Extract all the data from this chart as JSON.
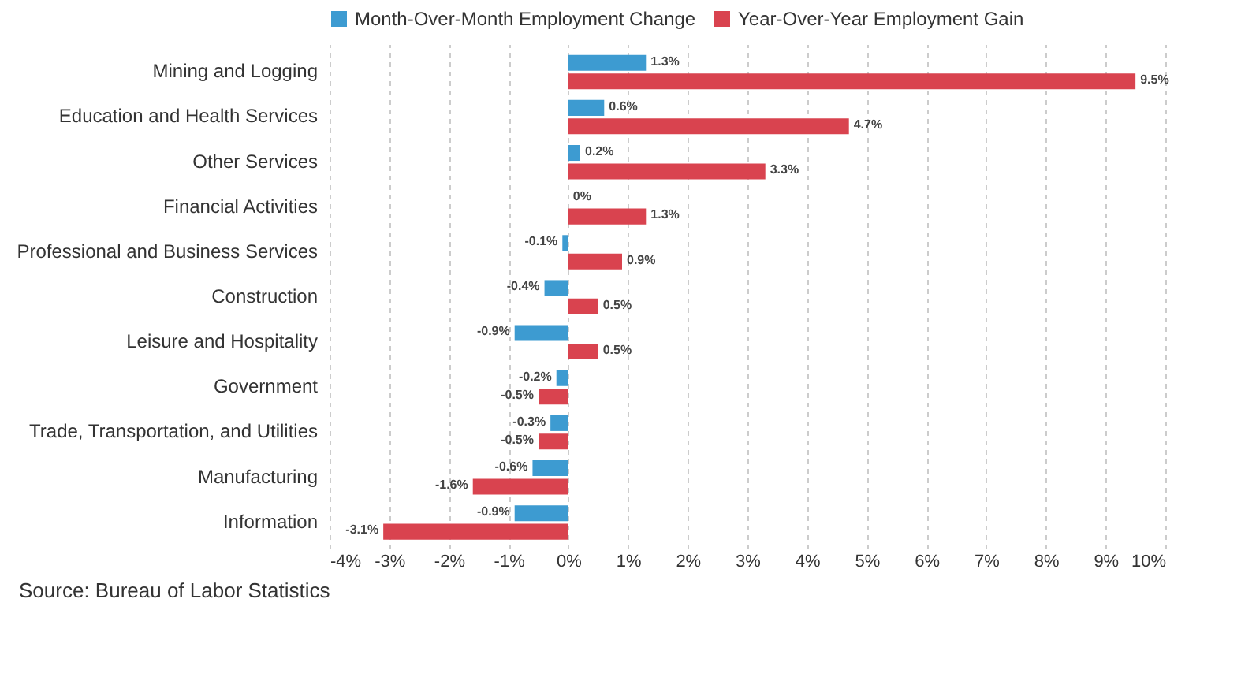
{
  "chart_data": {
    "type": "bar",
    "orientation": "horizontal",
    "categories": [
      "Mining and Logging",
      "Education and Health Services",
      "Other Services",
      "Financial Activities",
      "Professional and Business Services",
      "Construction",
      "Leisure and Hospitality",
      "Government",
      "Trade, Transportation, and Utilities",
      "Manufacturing",
      "Information"
    ],
    "series": [
      {
        "name": "Month-Over-Month Employment Change",
        "color": "#3d9bd1",
        "values": [
          1.3,
          0.6,
          0.2,
          0,
          -0.1,
          -0.4,
          -0.9,
          -0.2,
          -0.3,
          -0.6,
          -0.9
        ],
        "value_labels": [
          "1.3%",
          "0.6%",
          "0.2%",
          "0%",
          "-0.1%",
          "-0.4%",
          "-0.9%",
          "-0.2%",
          "-0.3%",
          "-0.6%",
          "-0.9%"
        ]
      },
      {
        "name": "Year-Over-Year Employment Gain",
        "color": "#d9434f",
        "values": [
          9.5,
          4.7,
          3.3,
          1.3,
          0.9,
          0.5,
          0.5,
          -0.5,
          -0.5,
          -1.6,
          -3.1
        ],
        "value_labels": [
          "9.5%",
          "4.7%",
          "3.3%",
          "1.3%",
          "0.9%",
          "0.5%",
          "0.5%",
          "-0.5%",
          "-0.5%",
          "-1.6%",
          "-3.1%"
        ]
      }
    ],
    "xlim": [
      -4,
      10
    ],
    "xticks": [
      {
        "value": -4,
        "label": "-4%"
      },
      {
        "value": -3,
        "label": "-3%"
      },
      {
        "value": -2,
        "label": "-2%"
      },
      {
        "value": -1,
        "label": "-1%"
      },
      {
        "value": 0,
        "label": "0%"
      },
      {
        "value": 1,
        "label": "1%"
      },
      {
        "value": 2,
        "label": "2%"
      },
      {
        "value": 3,
        "label": "3%"
      },
      {
        "value": 4,
        "label": "4%"
      },
      {
        "value": 5,
        "label": "5%"
      },
      {
        "value": 6,
        "label": "6%"
      },
      {
        "value": 7,
        "label": "7%"
      },
      {
        "value": 8,
        "label": "8%"
      },
      {
        "value": 9,
        "label": "9%"
      },
      {
        "value": 10,
        "label": "10%"
      }
    ],
    "grid": "x",
    "legend": "top left",
    "annotations": [
      "Source: Bureau of Labor Statistics"
    ]
  }
}
